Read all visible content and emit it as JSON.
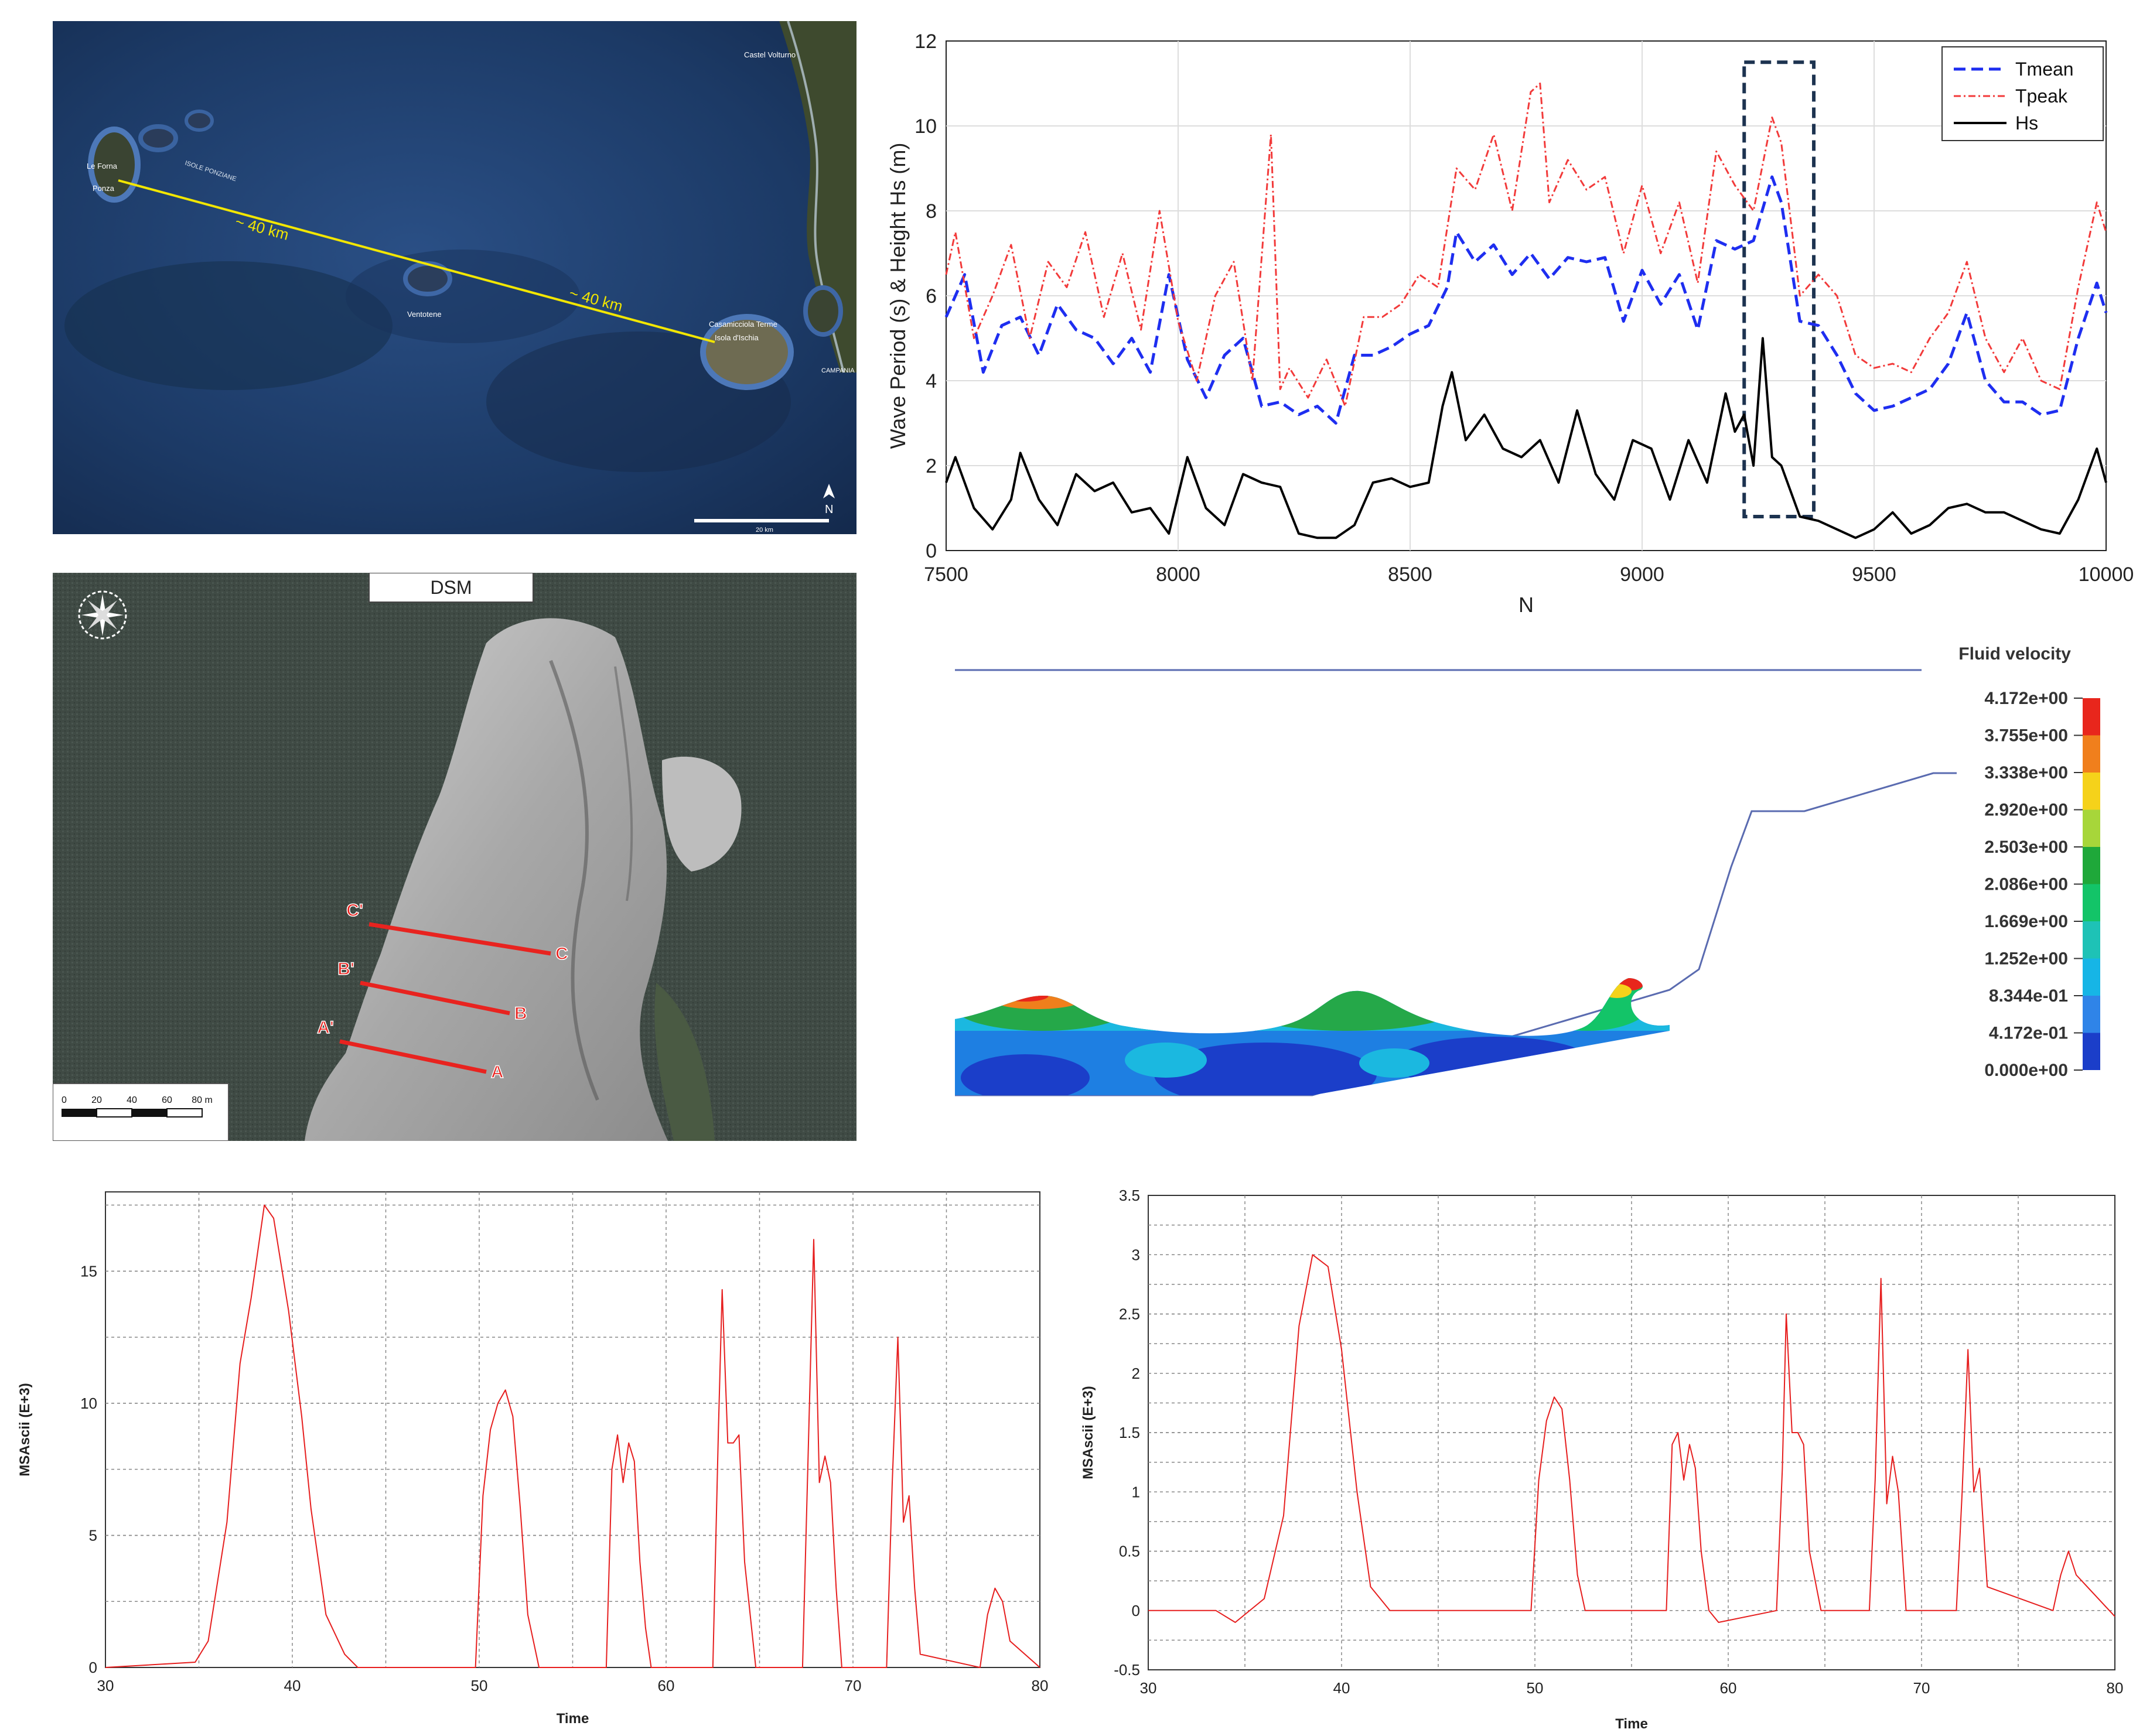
{
  "map_panel": {
    "labels": {
      "ponza_top": "Le Forna",
      "ponza": "Ponza",
      "isole_ponziane": "ISOLE PONZIANE",
      "dist1": "~ 40 km",
      "dist2": "~ 40 km",
      "ventotene": "Ventotene",
      "ischia_top": "Casamicciola Terme",
      "ischia": "Isola d'Ischia",
      "castel": "Castel Volturno",
      "campania": "CAMPANIA",
      "north": "N",
      "scale": "20 km"
    },
    "colors": {
      "sea": "#1c3a66",
      "line": "#f2e600"
    }
  },
  "dsm_panel": {
    "title": "DSM",
    "sections": [
      {
        "start": "C'",
        "end": "C"
      },
      {
        "start": "B'",
        "end": "B"
      },
      {
        "start": "A'",
        "end": "A"
      }
    ],
    "scale_ticks": [
      "0",
      "20",
      "40",
      "60",
      "80 m"
    ],
    "colors": {
      "section": "#e8231f",
      "water": "#3f4a44",
      "land": "#b5b5b5"
    }
  },
  "fluid_panel": {
    "legend_title": "Fluid velocity",
    "legend_values": [
      "4.172e+00",
      "3.755e+00",
      "3.338e+00",
      "2.920e+00",
      "2.503e+00",
      "2.086e+00",
      "1.669e+00",
      "1.252e+00",
      "8.344e-01",
      "4.172e-01",
      "0.000e+00"
    ],
    "legend_colors": [
      "#e8261c",
      "#f07f1c",
      "#f5d21a",
      "#a7d63a",
      "#1fa83a",
      "#13c468",
      "#1ec2b6",
      "#16b5e6",
      "#2f84e8",
      "#1b3ec9",
      "#1b3ec9"
    ]
  },
  "chart_data": [
    {
      "type": "line",
      "xlabel": "N",
      "ylabel": "Wave Period (s) & Height Hs (m)",
      "xlim": [
        7500,
        10000
      ],
      "ylim": [
        0,
        12
      ],
      "xticks": [
        "7500",
        "8000",
        "8500",
        "9000",
        "9500",
        "10000"
      ],
      "yticks": [
        "0",
        "2",
        "4",
        "6",
        "8",
        "10",
        "12"
      ],
      "grid": true,
      "legend_position": "top-right",
      "highlight_box": {
        "x": [
          9220,
          9370
        ],
        "y": [
          0.8,
          11.5
        ]
      },
      "series": [
        {
          "name": "Tmean",
          "color": "#1e2ef0",
          "x": [
            7500,
            7540,
            7580,
            7620,
            7660,
            7700,
            7740,
            7780,
            7820,
            7860,
            7900,
            7940,
            7980,
            8020,
            8060,
            8100,
            8140,
            8180,
            8220,
            8260,
            8300,
            8340,
            8380,
            8420,
            8460,
            8500,
            8540,
            8580,
            8600,
            8640,
            8680,
            8720,
            8760,
            8800,
            8840,
            8880,
            8920,
            8960,
            9000,
            9040,
            9080,
            9120,
            9160,
            9200,
            9240,
            9280,
            9300,
            9340,
            9380,
            9420,
            9460,
            9500,
            9540,
            9580,
            9620,
            9660,
            9700,
            9740,
            9780,
            9820,
            9860,
            9900,
            9940,
            9980,
            10000
          ],
          "y": [
            5.5,
            6.5,
            4.2,
            5.3,
            5.5,
            4.6,
            5.8,
            5.2,
            5.0,
            4.4,
            5.0,
            4.2,
            6.5,
            4.5,
            3.6,
            4.6,
            5.0,
            3.4,
            3.5,
            3.2,
            3.4,
            3.0,
            4.6,
            4.6,
            4.8,
            5.1,
            5.3,
            6.2,
            7.5,
            6.8,
            7.2,
            6.5,
            7.0,
            6.4,
            6.9,
            6.8,
            6.9,
            5.4,
            6.6,
            5.8,
            6.5,
            5.2,
            7.3,
            7.1,
            7.3,
            8.8,
            8.2,
            5.4,
            5.3,
            4.6,
            3.7,
            3.3,
            3.4,
            3.6,
            3.8,
            4.4,
            5.6,
            4.0,
            3.5,
            3.5,
            3.2,
            3.3,
            5.0,
            6.3,
            5.6
          ]
        },
        {
          "name": "Tpeak",
          "color": "#f23a3a",
          "x": [
            7500,
            7520,
            7560,
            7600,
            7640,
            7680,
            7720,
            7760,
            7800,
            7840,
            7880,
            7920,
            7960,
            8000,
            8040,
            8080,
            8120,
            8160,
            8200,
            8220,
            8240,
            8280,
            8320,
            8360,
            8400,
            8440,
            8480,
            8520,
            8560,
            8600,
            8640,
            8680,
            8720,
            8760,
            8780,
            8800,
            8840,
            8880,
            8920,
            8960,
            9000,
            9040,
            9080,
            9120,
            9160,
            9200,
            9240,
            9280,
            9300,
            9340,
            9380,
            9420,
            9460,
            9500,
            9540,
            9580,
            9620,
            9660,
            9700,
            9740,
            9780,
            9820,
            9860,
            9900,
            9940,
            9980,
            10000
          ],
          "y": [
            6.5,
            7.5,
            5.0,
            6.0,
            7.2,
            5.0,
            6.8,
            6.2,
            7.5,
            5.5,
            7.0,
            5.2,
            8.0,
            5.4,
            4.0,
            6.0,
            6.8,
            4.0,
            9.8,
            3.8,
            4.3,
            3.6,
            4.5,
            3.4,
            5.5,
            5.5,
            5.8,
            6.5,
            6.2,
            9.0,
            8.5,
            9.8,
            8.0,
            10.8,
            11.0,
            8.2,
            9.2,
            8.5,
            8.8,
            7.0,
            8.6,
            7.0,
            8.2,
            6.3,
            9.4,
            8.6,
            8.0,
            10.2,
            9.6,
            6.0,
            6.5,
            6.0,
            4.6,
            4.3,
            4.4,
            4.2,
            5.0,
            5.6,
            6.8,
            5.0,
            4.2,
            5.0,
            4.0,
            3.8,
            6.2,
            8.2,
            7.5
          ]
        },
        {
          "name": "Hs",
          "color": "#000000",
          "x": [
            7500,
            7520,
            7560,
            7600,
            7640,
            7660,
            7700,
            7740,
            7780,
            7820,
            7860,
            7900,
            7940,
            7980,
            8020,
            8060,
            8100,
            8140,
            8180,
            8220,
            8260,
            8300,
            8340,
            8380,
            8420,
            8460,
            8500,
            8540,
            8570,
            8590,
            8620,
            8660,
            8700,
            8740,
            8780,
            8820,
            8860,
            8900,
            8940,
            8980,
            9020,
            9060,
            9100,
            9140,
            9180,
            9200,
            9220,
            9240,
            9260,
            9280,
            9300,
            9340,
            9380,
            9420,
            9460,
            9500,
            9540,
            9580,
            9620,
            9660,
            9700,
            9740,
            9780,
            9820,
            9860,
            9900,
            9940,
            9980,
            10000
          ],
          "y": [
            1.6,
            2.2,
            1.0,
            0.5,
            1.2,
            2.3,
            1.2,
            0.6,
            1.8,
            1.4,
            1.6,
            0.9,
            1.0,
            0.4,
            2.2,
            1.0,
            0.6,
            1.8,
            1.6,
            1.5,
            0.4,
            0.3,
            0.3,
            0.6,
            1.6,
            1.7,
            1.5,
            1.6,
            3.4,
            4.2,
            2.6,
            3.2,
            2.4,
            2.2,
            2.6,
            1.6,
            3.3,
            1.8,
            1.2,
            2.6,
            2.4,
            1.2,
            2.6,
            1.6,
            3.7,
            2.8,
            3.2,
            2.0,
            5.0,
            2.2,
            2.0,
            0.8,
            0.7,
            0.5,
            0.3,
            0.5,
            0.9,
            0.4,
            0.6,
            1.0,
            1.1,
            0.9,
            0.9,
            0.7,
            0.5,
            0.4,
            1.2,
            2.4,
            1.6
          ]
        }
      ]
    },
    {
      "type": "line",
      "xlabel": "Time",
      "ylabel": "MSAscii (E+3)",
      "xlim": [
        30,
        80
      ],
      "ylim": [
        0,
        18
      ],
      "xticks": [
        "30",
        "40",
        "50",
        "60",
        "70",
        "80"
      ],
      "yticks": [
        "0",
        "5",
        "10",
        "15"
      ],
      "grid": true,
      "series": [
        {
          "color": "#e61e1e",
          "x": [
            30,
            34.8,
            35.5,
            36.5,
            37.2,
            37.8,
            38.5,
            39.0,
            39.8,
            40.5,
            41.0,
            41.8,
            42.8,
            43.5,
            49.8,
            50.2,
            50.6,
            51.0,
            51.4,
            51.8,
            52.2,
            52.6,
            53.2,
            56.8,
            57.1,
            57.4,
            57.7,
            58.0,
            58.3,
            58.6,
            58.9,
            59.2,
            62.5,
            62.8,
            63.0,
            63.3,
            63.6,
            63.9,
            64.2,
            64.5,
            64.8,
            67.3,
            67.6,
            67.9,
            68.2,
            68.5,
            68.8,
            69.1,
            69.4,
            71.8,
            72.1,
            72.4,
            72.7,
            73.0,
            73.3,
            73.6,
            76.8,
            77.2,
            77.6,
            78.0,
            78.4,
            80
          ],
          "y": [
            0,
            0.2,
            1.0,
            5.5,
            11.5,
            14.0,
            17.5,
            17.0,
            13.5,
            9.5,
            6.0,
            2.0,
            0.5,
            0,
            0,
            6.5,
            9.0,
            10.0,
            10.5,
            9.5,
            6.0,
            2.0,
            0,
            0,
            7.5,
            8.8,
            7.0,
            8.5,
            7.8,
            4.0,
            1.5,
            0,
            0,
            9.0,
            14.3,
            8.5,
            8.5,
            8.8,
            4.0,
            2.0,
            0,
            0,
            8.0,
            16.2,
            7.0,
            8.0,
            7.0,
            3.0,
            0,
            0,
            7.0,
            12.5,
            5.5,
            6.5,
            3.0,
            0.5,
            0,
            2.0,
            3.0,
            2.5,
            1.0,
            0
          ]
        }
      ]
    },
    {
      "type": "line",
      "xlabel": "Time",
      "ylabel": "MSAscii (E+3)",
      "xlim": [
        30,
        80
      ],
      "ylim": [
        -0.5,
        3.5
      ],
      "xticks": [
        "30",
        "40",
        "50",
        "60",
        "70",
        "80"
      ],
      "yticks": [
        "-0.5",
        "0",
        "0.5",
        "1",
        "1.5",
        "2",
        "2.5",
        "3",
        "3.5"
      ],
      "grid": true,
      "series": [
        {
          "color": "#e61e1e",
          "x": [
            30,
            33.5,
            34.5,
            36.0,
            37.0,
            37.8,
            38.5,
            39.3,
            40.0,
            40.8,
            41.5,
            42.5,
            43.5,
            49.8,
            50.2,
            50.6,
            51.0,
            51.4,
            51.8,
            52.2,
            52.6,
            53.2,
            56.8,
            57.1,
            57.4,
            57.7,
            58.0,
            58.3,
            58.6,
            59.0,
            59.5,
            62.5,
            62.8,
            63.0,
            63.3,
            63.6,
            63.9,
            64.2,
            64.8,
            67.3,
            67.6,
            67.9,
            68.2,
            68.5,
            68.8,
            69.2,
            71.8,
            72.1,
            72.4,
            72.7,
            73.0,
            73.4,
            76.8,
            77.2,
            77.6,
            78.0,
            80
          ],
          "y": [
            0,
            0,
            -0.1,
            0.1,
            0.8,
            2.4,
            3.0,
            2.9,
            2.2,
            1.0,
            0.2,
            0,
            0,
            0,
            1.1,
            1.6,
            1.8,
            1.7,
            1.1,
            0.3,
            0,
            0,
            0,
            1.4,
            1.5,
            1.1,
            1.4,
            1.2,
            0.5,
            0,
            -0.1,
            0,
            1.2,
            2.5,
            1.5,
            1.5,
            1.4,
            0.5,
            0,
            0,
            1.1,
            2.8,
            0.9,
            1.3,
            1.0,
            0,
            0,
            1.0,
            2.2,
            1.0,
            1.2,
            0.2,
            0,
            0.3,
            0.5,
            0.3,
            -0.05
          ]
        }
      ]
    }
  ]
}
